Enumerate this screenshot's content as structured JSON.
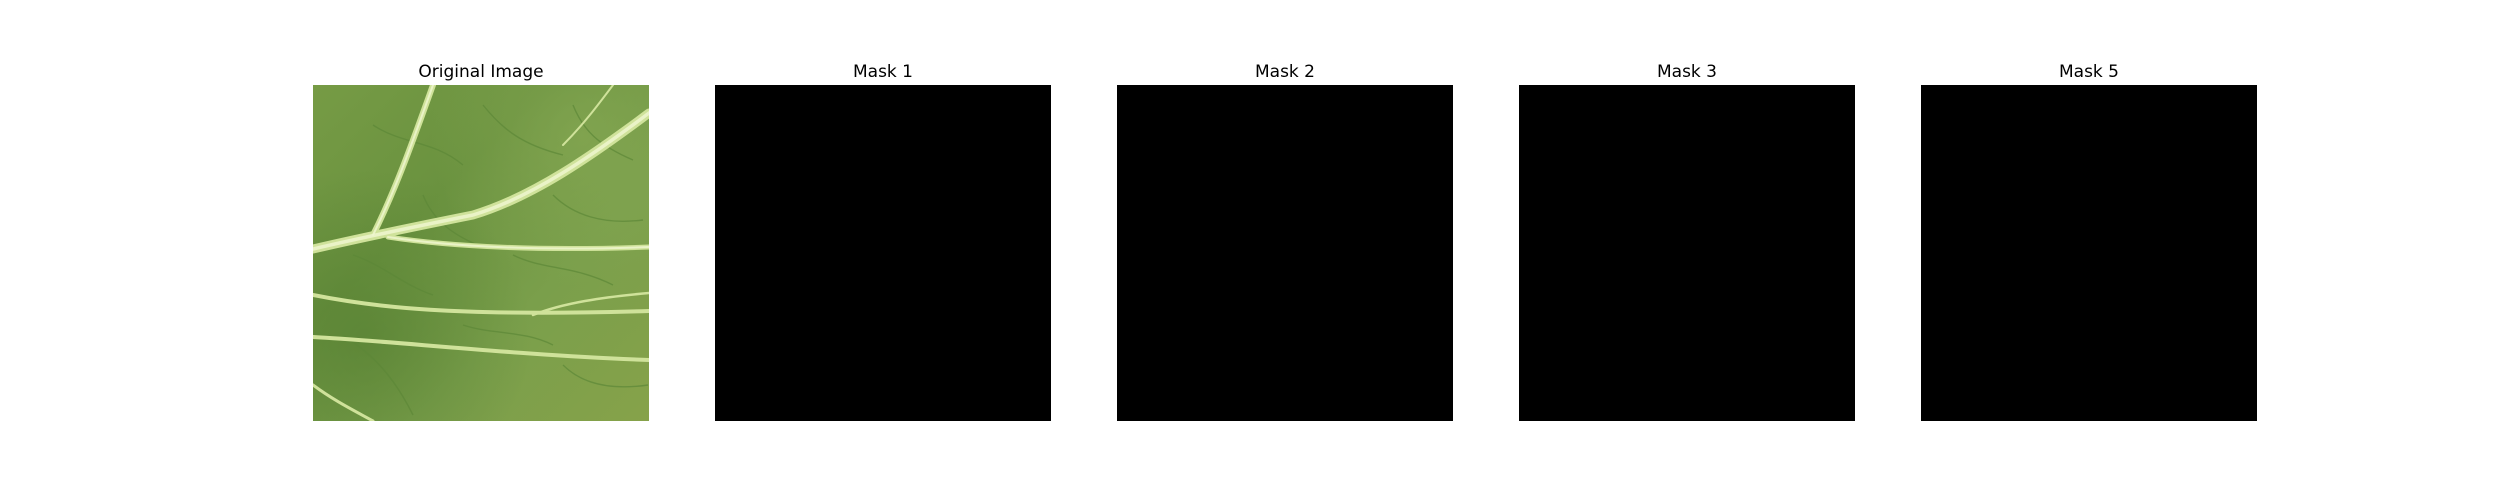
{
  "figure": {
    "panels": [
      {
        "title": "Original Image",
        "kind": "photo",
        "subject": "leaf-photo"
      },
      {
        "title": "Mask 1",
        "kind": "mask",
        "fill": "#000000"
      },
      {
        "title": "Mask 2",
        "kind": "mask",
        "fill": "#000000"
      },
      {
        "title": "Mask 3",
        "kind": "mask",
        "fill": "#000000"
      },
      {
        "title": "Mask 5",
        "kind": "mask",
        "fill": "#000000"
      }
    ],
    "colors": {
      "background": "#ffffff",
      "leaf_base": "#6e9540",
      "leaf_vein": "#dfeeb0",
      "mask": "#000000"
    }
  }
}
